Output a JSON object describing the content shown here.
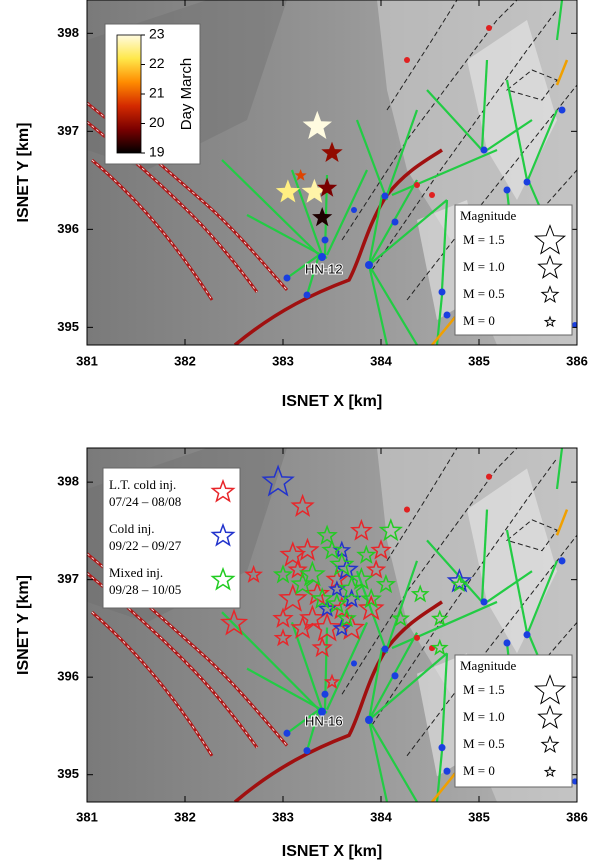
{
  "chart_data": [
    {
      "type": "scatter",
      "xlabel": "ISNET X [km]",
      "ylabel": "ISNET Y [km]",
      "xlim": [
        381,
        386
      ],
      "ylim": [
        394.82,
        398.34
      ],
      "xticks": [
        381,
        382,
        383,
        384,
        385,
        386
      ],
      "yticks": [
        395,
        396,
        397,
        398
      ],
      "x": [
        383.35,
        383.5,
        383.05,
        383.32,
        383.45,
        383.4,
        383.18
      ],
      "y": [
        397.05,
        396.78,
        396.38,
        396.38,
        396.42,
        396.12,
        396.55
      ],
      "magnitude": [
        1.5,
        0.9,
        1.1,
        1.2,
        0.8,
        0.8,
        0.2
      ],
      "day": [
        23,
        20,
        22.5,
        22.7,
        19.8,
        19.2,
        20.8
      ],
      "clim": [
        19,
        23
      ],
      "colormap": [
        "#000000",
        "#7a0000",
        "#d42a00",
        "#ff8c00",
        "#ffe84a",
        "#fffbe0"
      ],
      "colorbar_label": "Day March",
      "colorbar_ticks": [
        19,
        20,
        21,
        22,
        23
      ],
      "annotation": "HN-12",
      "magnitude_legend": {
        "title": "Magnitude",
        "entries": [
          {
            "label": "M = 1.5",
            "value": 1.5
          },
          {
            "label": "M = 1.0",
            "value": 1.0
          },
          {
            "label": "M = 0.5",
            "value": 0.5
          },
          {
            "label": "M = 0",
            "value": 0
          }
        ]
      }
    },
    {
      "type": "scatter",
      "xlabel": "ISNET X [km]",
      "ylabel": "ISNET Y [km]",
      "xlim": [
        381,
        386
      ],
      "ylim": [
        394.72,
        398.35
      ],
      "xticks": [
        381,
        382,
        383,
        384,
        385,
        386
      ],
      "yticks": [
        395,
        396,
        397,
        398
      ],
      "series": [
        {
          "name": "L.T. cold inj.",
          "dates": "07/24 – 08/08",
          "color": "#e8262a",
          "x": [
            383.2,
            382.7,
            382.5,
            383.1,
            383.25,
            383.1,
            383.3,
            383.45,
            383.7,
            383.0,
            383.2,
            383.6,
            383.9,
            384.0,
            383.8,
            383.55,
            383.35,
            383.95,
            383.5,
            383.4,
            383.15,
            383.0
          ],
          "y": [
            397.75,
            397.05,
            396.55,
            397.25,
            397.3,
            396.8,
            396.6,
            396.5,
            396.5,
            396.6,
            396.5,
            396.7,
            396.7,
            397.3,
            397.5,
            397.0,
            396.85,
            397.1,
            395.95,
            396.3,
            397.1,
            396.4
          ],
          "magnitude": [
            0.8,
            0.4,
            1.1,
            1.0,
            0.8,
            1.2,
            1.0,
            1.3,
            1.0,
            0.6,
            0.8,
            0.8,
            1.0,
            0.6,
            0.7,
            0.7,
            0.9,
            0.5,
            0.2,
            0.6,
            0.5,
            0.4
          ]
        },
        {
          "name": "Cold inj.",
          "dates": "09/22 – 09/27",
          "color": "#2233cc",
          "x": [
            382.95,
            384.8,
            383.65,
            383.6,
            383.7,
            383.6,
            383.45,
            383.55
          ],
          "y": [
            398.0,
            396.98,
            397.1,
            397.3,
            396.8,
            396.5,
            396.7,
            396.9
          ],
          "magnitude": [
            1.5,
            0.9,
            0.8,
            0.4,
            0.5,
            0.4,
            0.4,
            0.3
          ]
        },
        {
          "name": "Mixed inj.",
          "dates": "09/28 – 10/05",
          "color": "#22cc22",
          "x": [
            384.1,
            383.5,
            383.3,
            383.6,
            383.8,
            383.4,
            383.7,
            383.9,
            384.4,
            384.6,
            383.2,
            383.55,
            383.85,
            383.0,
            384.2,
            384.8,
            384.6,
            383.45,
            384.05,
            383.65
          ],
          "y": [
            397.5,
            397.3,
            397.05,
            397.15,
            397.0,
            396.8,
            396.9,
            396.8,
            396.85,
            396.6,
            396.95,
            396.75,
            397.25,
            397.05,
            396.6,
            396.95,
            396.3,
            397.45,
            396.95,
            396.6
          ],
          "magnitude": [
            0.8,
            0.6,
            1.0,
            0.9,
            0.8,
            0.7,
            1.0,
            0.6,
            0.4,
            0.3,
            0.8,
            0.6,
            0.5,
            0.5,
            0.4,
            0.3,
            0.3,
            0.6,
            0.5,
            0.5
          ]
        }
      ],
      "annotation": "HN-16",
      "magnitude_legend": {
        "title": "Magnitude",
        "entries": [
          {
            "label": "M = 1.5",
            "value": 1.5
          },
          {
            "label": "M = 1.0",
            "value": 1.0
          },
          {
            "label": "M = 0.5",
            "value": 0.5
          },
          {
            "label": "M = 0",
            "value": 0
          }
        ]
      }
    }
  ]
}
